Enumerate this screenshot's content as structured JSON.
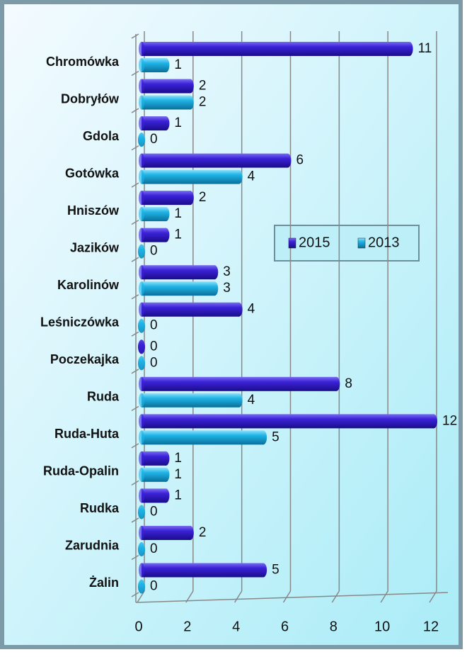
{
  "chart_data": {
    "type": "bar",
    "orientation": "horizontal",
    "categories": [
      "Chromówka",
      "Dobryłów",
      "Gdola",
      "Gotówka",
      "Hniszów",
      "Jazików",
      "Karolinów",
      "Leśniczówka",
      "Poczekajka",
      "Ruda",
      "Ruda-Huta",
      "Ruda-Opalin",
      "Rudka",
      "Zarudnia",
      "Żalin"
    ],
    "series": [
      {
        "name": "2015",
        "color": "#3b22d8",
        "values": [
          11,
          2,
          1,
          6,
          2,
          1,
          3,
          4,
          0,
          8,
          12,
          1,
          1,
          2,
          5
        ]
      },
      {
        "name": "2013",
        "color": "#1fb4e6",
        "values": [
          1,
          2,
          0,
          4,
          1,
          0,
          3,
          0,
          0,
          4,
          5,
          1,
          0,
          0,
          0
        ]
      }
    ],
    "xlim": [
      0,
      12
    ],
    "xticks": [
      0,
      2,
      4,
      6,
      8,
      10,
      12
    ],
    "grid": true,
    "legend": "center-right"
  }
}
